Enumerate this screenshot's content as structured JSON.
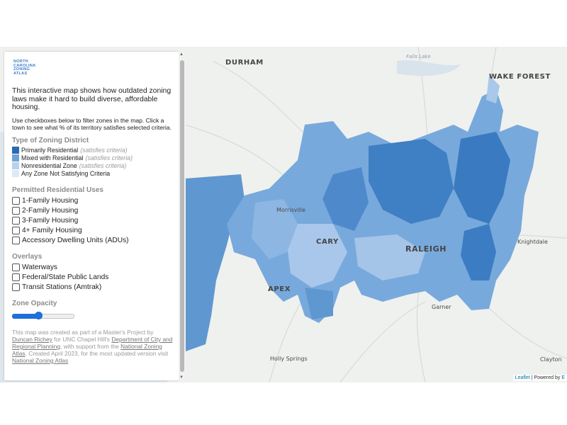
{
  "map": {
    "places": [
      {
        "key": "durham",
        "label": "DURHAM",
        "kind": "city"
      },
      {
        "key": "falls_lake",
        "label": "Falls Lake",
        "kind": "water"
      },
      {
        "key": "wake_forest",
        "label": "WAKE FOREST",
        "kind": "city"
      },
      {
        "key": "morrisville",
        "label": "Morrisville",
        "kind": "town"
      },
      {
        "key": "cary",
        "label": "CARY",
        "kind": "city"
      },
      {
        "key": "raleigh",
        "label": "RALEIGH",
        "kind": "city"
      },
      {
        "key": "knightdale",
        "label": "Knightdale",
        "kind": "town"
      },
      {
        "key": "apex",
        "label": "APEX",
        "kind": "city"
      },
      {
        "key": "garner",
        "label": "Garner",
        "kind": "town"
      },
      {
        "key": "holly_springs",
        "label": "Holly Springs",
        "kind": "town"
      },
      {
        "key": "clayton",
        "label": "Clayton",
        "kind": "town"
      }
    ],
    "attribution": {
      "leaflet": "Leaflet",
      "separator": " | Powered by ",
      "provider": "E"
    }
  },
  "sidebar": {
    "logo": [
      "NORTH",
      "CAROLINA",
      "ZONING",
      "ATLAS"
    ],
    "intro": "This interactive map shows how outdated zoning laws make it hard to build diverse, affordable housing.",
    "instructions": "Use checkboxes below to filter zones in the map. Click a town to see what % of its territory satisfies selected criteria.",
    "zoning_type": {
      "title": "Type of Zoning District",
      "items": [
        {
          "label": "Primarily Residential",
          "note": "(satisfies criteria)",
          "color": "#2b6cb0"
        },
        {
          "label": "Mixed with Residential",
          "note": "(satisfies criteria)",
          "color": "#6fa3d8"
        },
        {
          "label": "Nonresidential Zone",
          "note": "(satisfies criteria)",
          "color": "#b9d1ec"
        },
        {
          "label": "Any Zone Not Satisfying Criteria",
          "note": "",
          "color": "#dde9f6"
        }
      ]
    },
    "residential_uses": {
      "title": "Permitted Residential Uses",
      "items": [
        "1-Family Housing",
        "2-Family Housing",
        "3-Family Housing",
        "4+ Family Housing",
        "Accessory Dwelling Units (ADUs)"
      ]
    },
    "overlays": {
      "title": "Overlays",
      "items": [
        "Waterways",
        "Federal/State Public Lands",
        "Transit Stations (Amtrak)"
      ]
    },
    "opacity": {
      "title": "Zone Opacity",
      "value": 0.42
    },
    "credits": {
      "t1": "This map was created as part of a Master's Project by ",
      "author": "Duncan Richey",
      "t2": " for UNC Chapel Hill's ",
      "dept": "Department of City and Regional Planning",
      "t3": ", with support from the ",
      "nza": "National Zoning Atlas",
      "t4": ". Created April 2023, for the most updated version visit ",
      "nza2": "National Zoning Atlas"
    }
  }
}
